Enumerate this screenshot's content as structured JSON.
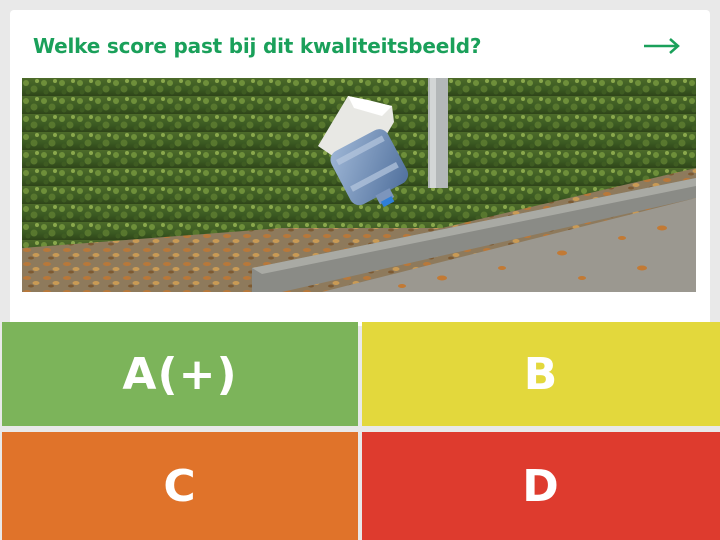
{
  "question": {
    "text": "Welke score past bij dit kwaliteitsbeeld?",
    "next_icon": "arrow-right-icon"
  },
  "photo": {
    "icon": "photo-litter-water-bottle-in-hedge"
  },
  "answers": [
    {
      "label": "A(+)",
      "color": "#7cb45a"
    },
    {
      "label": "B",
      "color": "#e3d83c"
    },
    {
      "label": "C",
      "color": "#e0732a"
    },
    {
      "label": "D",
      "color": "#de3b2e"
    }
  ],
  "colors": {
    "accent": "#1aa05a",
    "background": "#e9e9e9"
  }
}
